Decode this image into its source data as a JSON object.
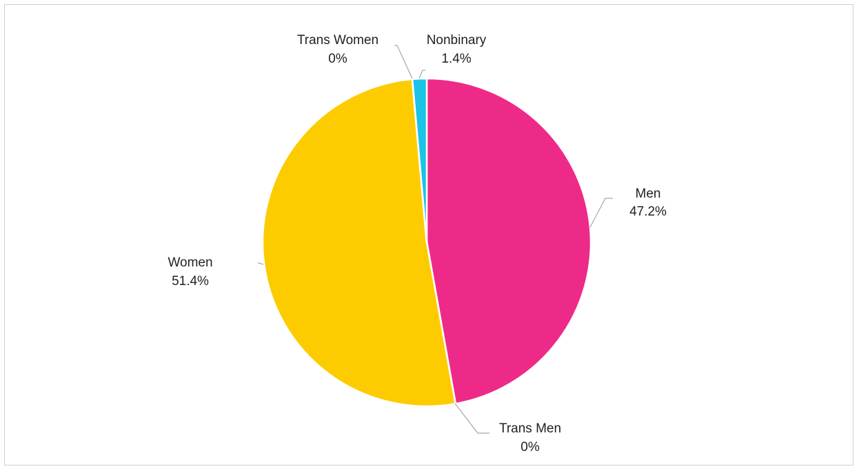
{
  "chart_data": {
    "type": "pie",
    "title": "",
    "slices": [
      {
        "label": "Men",
        "value": 47.2,
        "display": "47.2%",
        "color": "#EE2A89"
      },
      {
        "label": "Trans Men",
        "value": 0,
        "display": "0%",
        "color": "#FFFFFF"
      },
      {
        "label": "Women",
        "value": 51.4,
        "display": "51.4%",
        "color": "#FCCC00"
      },
      {
        "label": "Trans Women",
        "value": 0,
        "display": "0%",
        "color": "#FFFFFF"
      },
      {
        "label": "Nonbinary",
        "value": 1.4,
        "display": "1.4%",
        "color": "#1BC3E6"
      }
    ],
    "start": "12 o'clock",
    "direction": "clockwise",
    "legend": "none (data labels with leader lines)"
  }
}
